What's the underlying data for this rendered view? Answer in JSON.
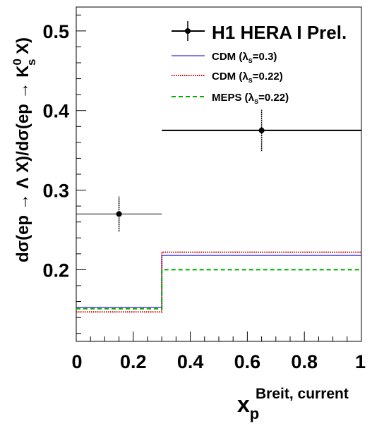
{
  "chart_data": {
    "type": "step-line",
    "title": "",
    "xlabel": "x_p^{Breit, current}",
    "ylabel": "dσ(ep → Λ X)/dσ(ep → K_s^0 X)",
    "xlim": [
      0,
      1
    ],
    "ylim": [
      0.11,
      0.53
    ],
    "xticks": [
      0,
      0.2,
      0.4,
      0.6,
      0.8,
      1
    ],
    "xtick_labels": [
      "0",
      "0.2",
      "0.4",
      "0.6",
      "0.8",
      "1"
    ],
    "yticks": [
      0.2,
      0.3,
      0.4,
      0.5
    ],
    "ytick_labels": [
      "0.2",
      "0.3",
      "0.4",
      "0.5"
    ],
    "bin_edges": [
      0,
      0.3,
      1
    ],
    "data": {
      "name": "H1 HERA I Prel.",
      "x": [
        0.15,
        0.65
      ],
      "y": [
        0.27,
        0.375
      ],
      "xerr": [
        0.15,
        0.35
      ],
      "yerr": [
        0.022,
        0.026
      ],
      "color": "#000000"
    },
    "series": [
      {
        "name": "CDM (λs=0.3)",
        "values": [
          0.153,
          0.218
        ],
        "color": "#0000cc",
        "style": "solid"
      },
      {
        "name": "CDM (λs=0.22)",
        "values": [
          0.147,
          0.222
        ],
        "color": "#cc0000",
        "style": "dotted"
      },
      {
        "name": "MEPS (λs=0.22)",
        "values": [
          0.151,
          0.2
        ],
        "color": "#00aa00",
        "style": "dashed"
      }
    ],
    "legend_position": "top-right",
    "grid": false
  },
  "labels": {
    "legend_data": "H1 HERA I Prel.",
    "cdm03_main": "CDM (λ",
    "cdm03_sub": "s",
    "cdm03_tail": "=0.3)",
    "cdm022_main": "CDM (λ",
    "cdm022_sub": "s",
    "cdm022_tail": "=0.22)",
    "meps_main": "MEPS (λ",
    "meps_sub": "s",
    "meps_tail": "=0.22)",
    "xlabel_main": "x",
    "xlabel_sub": "p",
    "xlabel_sup": "Breit, current",
    "ylabel_a": "dσ(ep → Λ X)/dσ(ep → K",
    "ylabel_sup": "0",
    "ylabel_sub": "s",
    "ylabel_b": " X)"
  }
}
